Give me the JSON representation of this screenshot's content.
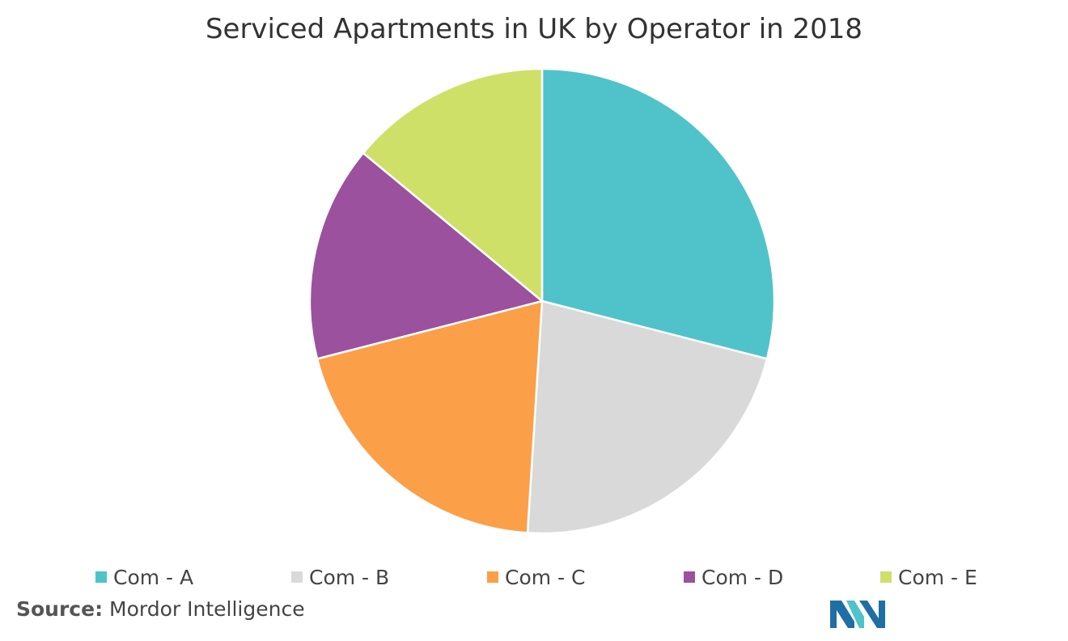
{
  "chart_data": {
    "type": "pie",
    "title": "Serviced Apartments in UK by Operator in 2018",
    "categories": [
      "Com - A",
      "Com - B",
      "Com - C",
      "Com - D",
      "Com - E"
    ],
    "values": [
      29,
      22,
      20,
      15,
      14
    ],
    "unit": "%",
    "colors": [
      "#4fc3c9",
      "#d9d9d9",
      "#fb9f48",
      "#9b519d",
      "#cfe069"
    ],
    "start_angle_deg": 0,
    "direction": "clockwise",
    "legend_position": "bottom",
    "data_labels": false
  },
  "source": {
    "prefix": "Source:",
    "text": "Mordor Intelligence"
  },
  "logo": {
    "icon": "mordor-intelligence-logo",
    "colors": [
      "#1f6fa5",
      "#4fc3c9"
    ]
  }
}
